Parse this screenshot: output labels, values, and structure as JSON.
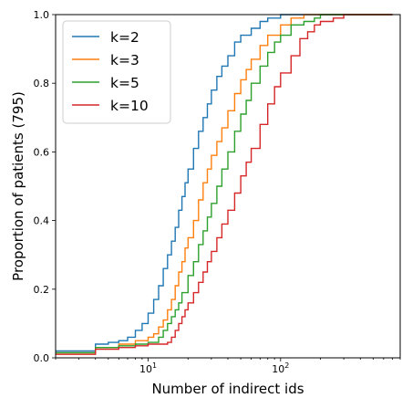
{
  "chart_data": {
    "type": "line",
    "subtype": "empirical-cdf-step",
    "title": "",
    "xlabel": "Number of indirect ids",
    "ylabel": "Proportion of patients (795)",
    "xscale": "log",
    "xlim": [
      2,
      800
    ],
    "ylim": [
      0.0,
      1.0
    ],
    "x_ticks": [
      {
        "value": 10,
        "base": "10",
        "exp": "1"
      },
      {
        "value": 100,
        "base": "10",
        "exp": "2"
      }
    ],
    "y_ticks": [
      {
        "value": 0.0,
        "label": "0.0"
      },
      {
        "value": 0.2,
        "label": "0.2"
      },
      {
        "value": 0.4,
        "label": "0.4"
      },
      {
        "value": 0.6,
        "label": "0.6"
      },
      {
        "value": 0.8,
        "label": "0.8"
      },
      {
        "value": 1.0,
        "label": "1.0"
      }
    ],
    "grid": false,
    "legend_position": "top-left",
    "series": [
      {
        "name": "k=2",
        "color": "#1f77b4",
        "x": [
          2,
          3,
          4,
          5,
          6,
          7,
          8,
          9,
          10,
          11,
          12,
          13,
          14,
          15,
          16,
          17,
          18,
          19,
          20,
          22,
          24,
          26,
          28,
          30,
          33,
          36,
          40,
          45,
          50,
          60,
          70,
          80,
          100,
          120,
          150,
          200,
          300,
          700
        ],
        "y": [
          0.02,
          0.02,
          0.04,
          0.045,
          0.05,
          0.06,
          0.08,
          0.1,
          0.13,
          0.17,
          0.21,
          0.26,
          0.3,
          0.34,
          0.38,
          0.43,
          0.47,
          0.51,
          0.55,
          0.61,
          0.66,
          0.7,
          0.74,
          0.78,
          0.82,
          0.85,
          0.88,
          0.92,
          0.94,
          0.96,
          0.98,
          0.99,
          1.0,
          1.0,
          1.0,
          1.0,
          1.0,
          1.0
        ]
      },
      {
        "name": "k=3",
        "color": "#ff7f0e",
        "x": [
          2,
          4,
          6,
          8,
          10,
          11,
          12,
          13,
          14,
          15,
          16,
          17,
          18,
          19,
          20,
          22,
          24,
          26,
          28,
          30,
          33,
          36,
          40,
          45,
          50,
          55,
          60,
          70,
          80,
          100,
          120,
          150,
          200,
          300,
          700
        ],
        "y": [
          0.015,
          0.03,
          0.04,
          0.05,
          0.06,
          0.07,
          0.09,
          0.11,
          0.14,
          0.17,
          0.21,
          0.25,
          0.28,
          0.32,
          0.35,
          0.4,
          0.46,
          0.51,
          0.55,
          0.59,
          0.63,
          0.67,
          0.72,
          0.77,
          0.81,
          0.84,
          0.87,
          0.91,
          0.94,
          0.97,
          0.99,
          1.0,
          1.0,
          1.0,
          1.0
        ]
      },
      {
        "name": "k=5",
        "color": "#2ca02c",
        "x": [
          2,
          4,
          6,
          8,
          10,
          12,
          13,
          14,
          15,
          16,
          17,
          18,
          20,
          22,
          24,
          26,
          28,
          30,
          33,
          36,
          40,
          45,
          50,
          55,
          60,
          70,
          80,
          90,
          100,
          120,
          150,
          180,
          200,
          250,
          350,
          700
        ],
        "y": [
          0.015,
          0.03,
          0.035,
          0.04,
          0.045,
          0.06,
          0.08,
          0.1,
          0.12,
          0.14,
          0.16,
          0.19,
          0.24,
          0.28,
          0.33,
          0.37,
          0.41,
          0.45,
          0.5,
          0.55,
          0.6,
          0.66,
          0.71,
          0.75,
          0.8,
          0.85,
          0.89,
          0.92,
          0.94,
          0.97,
          0.98,
          0.99,
          1.0,
          1.0,
          1.0,
          1.0
        ]
      },
      {
        "name": "k=10",
        "color": "#d62728",
        "x": [
          2,
          4,
          6,
          8,
          10,
          12,
          14,
          15,
          16,
          17,
          18,
          19,
          20,
          22,
          24,
          26,
          28,
          30,
          33,
          36,
          40,
          45,
          50,
          55,
          60,
          70,
          80,
          90,
          100,
          120,
          140,
          160,
          180,
          200,
          250,
          300,
          400,
          700
        ],
        "y": [
          0.01,
          0.025,
          0.03,
          0.035,
          0.04,
          0.04,
          0.045,
          0.06,
          0.08,
          0.1,
          0.12,
          0.14,
          0.16,
          0.19,
          0.22,
          0.25,
          0.28,
          0.31,
          0.35,
          0.39,
          0.43,
          0.48,
          0.53,
          0.57,
          0.61,
          0.68,
          0.74,
          0.79,
          0.83,
          0.88,
          0.93,
          0.95,
          0.97,
          0.98,
          0.99,
          1.0,
          1.0,
          1.0
        ]
      }
    ]
  }
}
